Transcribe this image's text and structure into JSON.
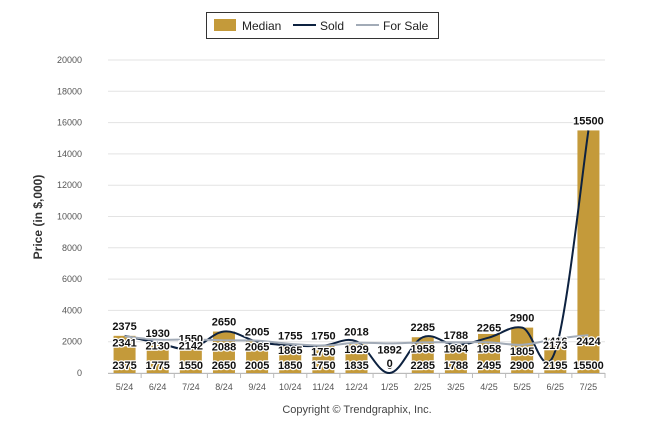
{
  "legend": {
    "median_label": "Median",
    "sold_label": "Sold",
    "for_sale_label": "For Sale"
  },
  "colors": {
    "median": "#C49A3A",
    "sold": "#0D2240",
    "for_sale": "#A2ABB7",
    "grid": "#E3E3E3"
  },
  "copyright": "Copyright © Trendgraphix, Inc.",
  "chart_data": {
    "type": "bar",
    "title": "",
    "xlabel": "",
    "ylabel": "Price (in $,000)",
    "ylim": [
      0,
      20000
    ],
    "yticks": [
      0,
      2000,
      4000,
      6000,
      8000,
      10000,
      12000,
      14000,
      16000,
      18000,
      20000
    ],
    "grid": true,
    "legend_position": "top-center",
    "categories": [
      "5/24",
      "6/24",
      "7/24",
      "8/24",
      "9/24",
      "10/24",
      "11/24",
      "12/24",
      "1/25",
      "2/25",
      "3/25",
      "4/25",
      "5/25",
      "6/25",
      "7/25"
    ],
    "series": [
      {
        "name": "Median",
        "kind": "bar",
        "values": [
          2375,
          1775,
          1550,
          2650,
          2005,
          1850,
          1750,
          1835,
          0,
          2285,
          1788,
          2495,
          2900,
          2195,
          15500
        ]
      },
      {
        "name": "Sold",
        "kind": "line",
        "values": [
          2375,
          1930,
          1550,
          2650,
          2005,
          1755,
          1750,
          2018,
          0,
          2285,
          1788,
          2265,
          2900,
          1416,
          15500
        ]
      },
      {
        "name": "For Sale",
        "kind": "line",
        "values": [
          2341,
          2130,
          2142,
          2088,
          2065,
          1865,
          1750,
          1929,
          1892,
          1958,
          1964,
          1958,
          1805,
          2173,
          2424
        ]
      }
    ]
  }
}
